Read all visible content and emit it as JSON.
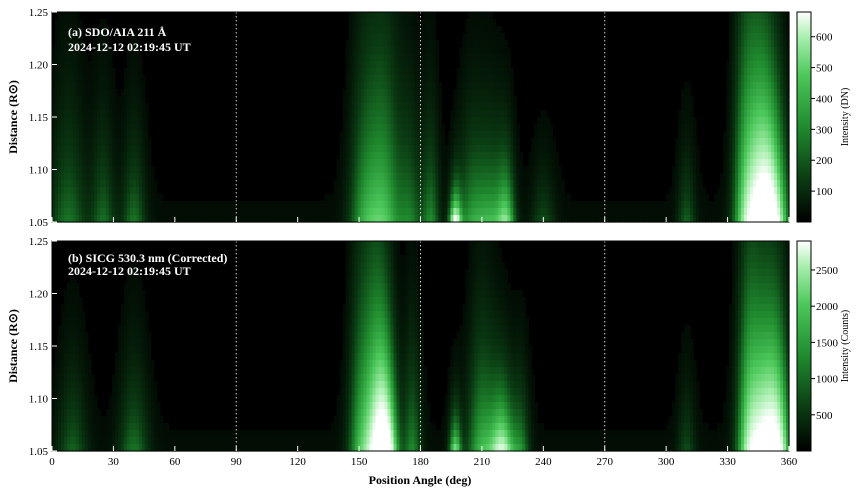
{
  "chart_data": [
    {
      "type": "heatmap",
      "panel_title": "(a) SDO/AIA 211 Å",
      "timestamp": "2024-12-12 02:19:45 UT",
      "xlabel": "Position Angle (deg)",
      "ylabel": "Distance (R⊙)",
      "xlim": [
        0,
        360
      ],
      "ylim": [
        1.05,
        1.25
      ],
      "xticks": [
        0,
        30,
        60,
        90,
        120,
        150,
        180,
        210,
        240,
        270,
        300,
        330,
        360
      ],
      "yticks": [
        1.05,
        1.1,
        1.15,
        1.2,
        1.25
      ],
      "reference_lines_x": [
        90,
        180,
        270
      ],
      "colorbar": {
        "label": "Intensity (DN)",
        "range": [
          0,
          680
        ],
        "ticks": [
          100,
          200,
          300,
          400,
          500,
          600
        ]
      },
      "colormap": [
        "#000000",
        "#0a3a12",
        "#1f8a2e",
        "#4cc85a",
        "#a8efae",
        "#ffffff"
      ],
      "features": [
        {
          "pa": 8,
          "width": 6,
          "peak": 0.3,
          "height": 0.55
        },
        {
          "pa": 25,
          "width": 4,
          "peak": 0.28,
          "height": 0.45
        },
        {
          "pa": 40,
          "width": 4,
          "peak": 0.3,
          "height": 0.4
        },
        {
          "pa": 152,
          "width": 5,
          "peak": 0.35,
          "height": 0.7
        },
        {
          "pa": 162,
          "width": 6,
          "peak": 0.55,
          "height": 0.75
        },
        {
          "pa": 175,
          "width": 4,
          "peak": 0.3,
          "height": 0.5
        },
        {
          "pa": 185,
          "width": 3,
          "peak": 0.35,
          "height": 0.45
        },
        {
          "pa": 197,
          "width": 2,
          "peak": 0.95,
          "height": 0.12
        },
        {
          "pa": 205,
          "width": 5,
          "peak": 0.4,
          "height": 0.4
        },
        {
          "pa": 215,
          "width": 5,
          "peak": 0.45,
          "height": 0.35
        },
        {
          "pa": 222,
          "width": 3,
          "peak": 0.55,
          "height": 0.25
        },
        {
          "pa": 240,
          "width": 4,
          "peak": 0.2,
          "height": 0.25
        },
        {
          "pa": 310,
          "width": 3,
          "peak": 0.25,
          "height": 0.3
        },
        {
          "pa": 338,
          "width": 4,
          "peak": 0.45,
          "height": 0.9
        },
        {
          "pa": 345,
          "width": 5,
          "peak": 0.85,
          "height": 0.7
        },
        {
          "pa": 352,
          "width": 5,
          "peak": 1.0,
          "height": 0.45
        }
      ]
    },
    {
      "type": "heatmap",
      "panel_title": "(b) SICG 530.3 nm (Corrected)",
      "timestamp": "2024-12-12 02:19:45 UT",
      "xlabel": "Position Angle (deg)",
      "ylabel": "Distance (R⊙)",
      "xlim": [
        0,
        360
      ],
      "ylim": [
        1.05,
        1.25
      ],
      "xticks": [
        0,
        30,
        60,
        90,
        120,
        150,
        180,
        210,
        240,
        270,
        300,
        330,
        360
      ],
      "yticks": [
        1.05,
        1.1,
        1.15,
        1.2,
        1.25
      ],
      "reference_lines_x": [
        90,
        180,
        270
      ],
      "colorbar": {
        "label": "Intensity (Counts)",
        "range": [
          0,
          2900
        ],
        "ticks": [
          500,
          1000,
          1500,
          2000,
          2500
        ]
      },
      "colormap": [
        "#000000",
        "#0a3a12",
        "#1f8a2e",
        "#4cc85a",
        "#a8efae",
        "#ffffff"
      ],
      "features": [
        {
          "pa": 10,
          "width": 5,
          "peak": 0.25,
          "height": 0.4
        },
        {
          "pa": 40,
          "width": 5,
          "peak": 0.3,
          "height": 0.4
        },
        {
          "pa": 150,
          "width": 4,
          "peak": 0.35,
          "height": 0.75
        },
        {
          "pa": 158,
          "width": 5,
          "peak": 0.7,
          "height": 0.8
        },
        {
          "pa": 163,
          "width": 4,
          "peak": 1.0,
          "height": 0.35
        },
        {
          "pa": 176,
          "width": 3,
          "peak": 0.35,
          "height": 0.5
        },
        {
          "pa": 197,
          "width": 2,
          "peak": 0.7,
          "height": 0.15
        },
        {
          "pa": 210,
          "width": 5,
          "peak": 0.5,
          "height": 0.5
        },
        {
          "pa": 220,
          "width": 4,
          "peak": 0.85,
          "height": 0.25
        },
        {
          "pa": 229,
          "width": 3,
          "peak": 0.35,
          "height": 0.3
        },
        {
          "pa": 310,
          "width": 3,
          "peak": 0.2,
          "height": 0.3
        },
        {
          "pa": 340,
          "width": 4,
          "peak": 0.6,
          "height": 0.8
        },
        {
          "pa": 348,
          "width": 5,
          "peak": 1.0,
          "height": 0.55
        },
        {
          "pa": 355,
          "width": 4,
          "peak": 0.75,
          "height": 0.5
        }
      ]
    }
  ]
}
